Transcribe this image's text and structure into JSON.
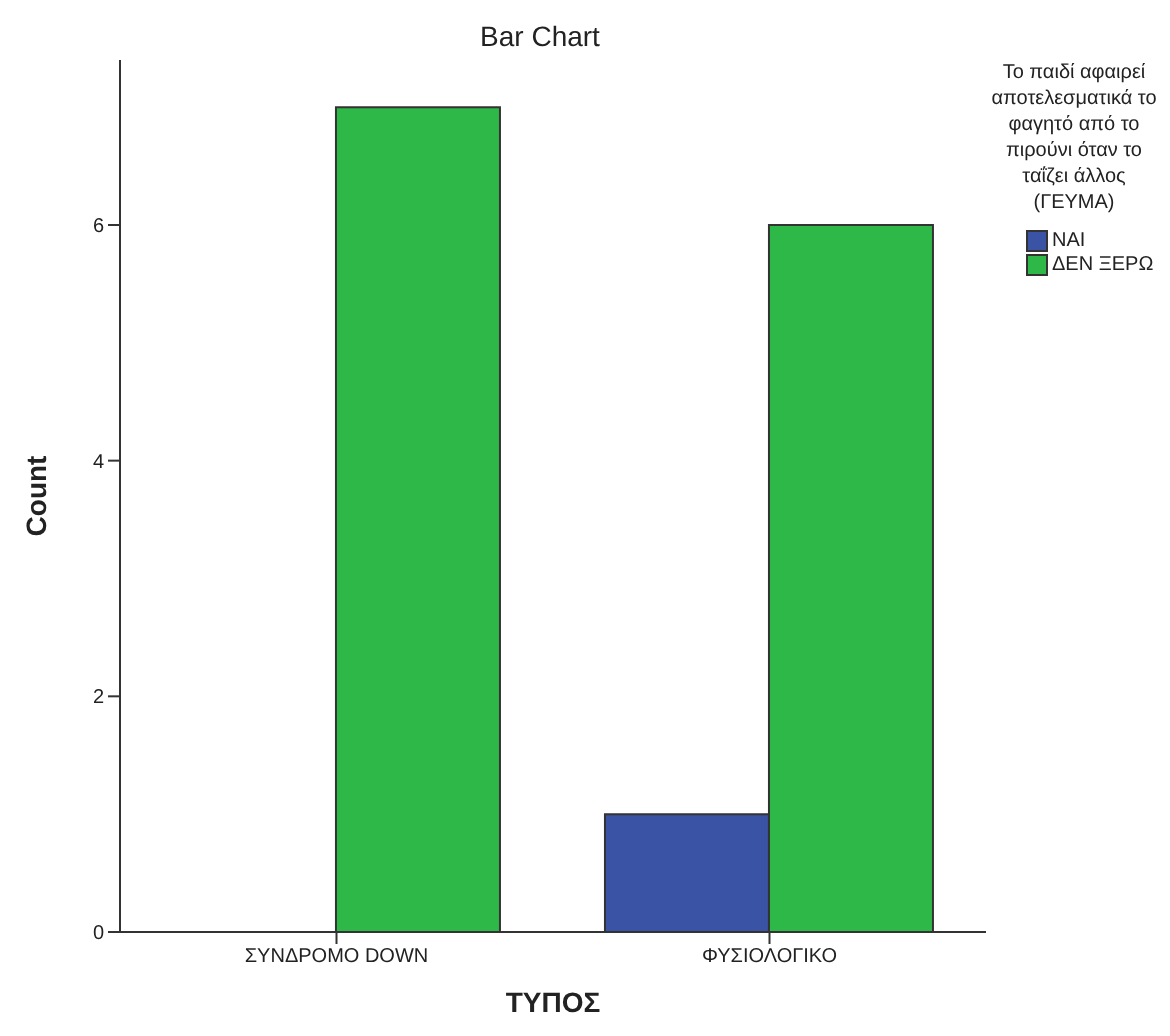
{
  "chart_data": {
    "type": "bar",
    "title": "Bar Chart",
    "xlabel": "ΤΥΠΟΣ",
    "ylabel": "Count",
    "legend_title": "Το παιδί αφαιρεί αποτελεσματικά το φαγητό από το πιρούνι όταν το ταΐζει άλλος (ΓΕΥΜΑ)",
    "categories": [
      "ΣΥΝΔΡΟΜΟ DOWN",
      "ΦΥΣΙΟΛΟΓΙΚΟ"
    ],
    "series": [
      {
        "name": "ΝΑΙ",
        "color": "#3a53a4",
        "values": [
          0,
          1
        ]
      },
      {
        "name": "ΔΕΝ ΞΕΡΩ",
        "color": "#2eb848",
        "values": [
          7,
          6
        ]
      }
    ],
    "ylim": [
      0,
      7.4
    ],
    "yticks": [
      0,
      2,
      4,
      6
    ],
    "grid": false,
    "legend": "right"
  }
}
